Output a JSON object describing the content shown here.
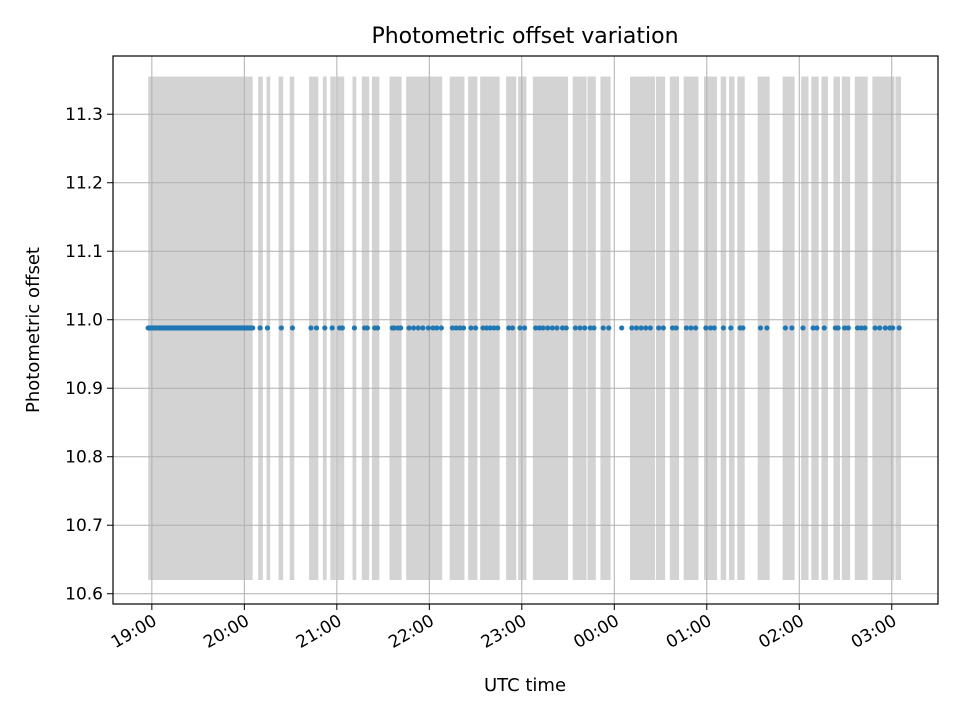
{
  "chart_data": {
    "type": "scatter",
    "title": "Photometric offset variation",
    "xlabel": "UTC time",
    "ylabel": "Photometric offset",
    "x_unit": "hours (UTC, continuing past midnight)",
    "xlim": [
      18.58,
      27.5
    ],
    "ylim": [
      10.585,
      11.385
    ],
    "grid": true,
    "x_ticks": [
      {
        "value": 19,
        "label": "19:00"
      },
      {
        "value": 20,
        "label": "20:00"
      },
      {
        "value": 21,
        "label": "21:00"
      },
      {
        "value": 22,
        "label": "22:00"
      },
      {
        "value": 23,
        "label": "23:00"
      },
      {
        "value": 24,
        "label": "00:00"
      },
      {
        "value": 25,
        "label": "01:00"
      },
      {
        "value": 26,
        "label": "02:00"
      },
      {
        "value": 27,
        "label": "03:00"
      }
    ],
    "y_ticks": [
      {
        "value": 10.6,
        "label": "10.6"
      },
      {
        "value": 10.7,
        "label": "10.7"
      },
      {
        "value": 10.8,
        "label": "10.8"
      },
      {
        "value": 10.9,
        "label": "10.9"
      },
      {
        "value": 11.0,
        "label": "11.0"
      },
      {
        "value": 11.1,
        "label": "11.1"
      },
      {
        "value": 11.2,
        "label": "11.2"
      },
      {
        "value": 11.3,
        "label": "11.3"
      }
    ],
    "bands": {
      "color": "#d3d3d3",
      "y_range": [
        10.62,
        11.355
      ],
      "intervals": [
        [
          18.96,
          20.09
        ],
        [
          20.15,
          20.2
        ],
        [
          20.24,
          20.28
        ],
        [
          20.37,
          20.42
        ],
        [
          20.49,
          20.54
        ],
        [
          20.7,
          20.8
        ],
        [
          20.85,
          20.89
        ],
        [
          20.93,
          20.99
        ],
        [
          21.0,
          21.08
        ],
        [
          21.17,
          21.21
        ],
        [
          21.27,
          21.35
        ],
        [
          21.38,
          21.46
        ],
        [
          21.57,
          21.7
        ],
        [
          21.75,
          22.14
        ],
        [
          22.22,
          22.38
        ],
        [
          22.42,
          22.52
        ],
        [
          22.55,
          22.76
        ],
        [
          22.83,
          22.94
        ],
        [
          22.96,
          23.05
        ],
        [
          23.12,
          23.5
        ],
        [
          23.55,
          23.7
        ],
        [
          23.71,
          23.8
        ],
        [
          23.85,
          23.96
        ],
        [
          24.17,
          24.44
        ],
        [
          24.45,
          24.55
        ],
        [
          24.6,
          24.7
        ],
        [
          24.75,
          24.91
        ],
        [
          24.97,
          25.11
        ],
        [
          25.15,
          25.21
        ],
        [
          25.24,
          25.3
        ],
        [
          25.33,
          25.41
        ],
        [
          25.55,
          25.68
        ],
        [
          25.82,
          25.95
        ],
        [
          26.02,
          26.1
        ],
        [
          26.13,
          26.21
        ],
        [
          26.24,
          26.31
        ],
        [
          26.37,
          26.44
        ],
        [
          26.46,
          26.55
        ],
        [
          26.6,
          26.74
        ],
        [
          26.79,
          27.03
        ],
        [
          27.04,
          27.1
        ]
      ]
    },
    "series": [
      {
        "color": "#1f77b4",
        "y_value": 10.988,
        "x_dense_range": [
          18.96,
          20.09
        ],
        "x": [
          20.17,
          20.25,
          20.4,
          20.52,
          20.72,
          20.78,
          20.87,
          20.95,
          21.03,
          21.06,
          21.19,
          21.3,
          21.33,
          21.41,
          21.44,
          21.6,
          21.62,
          21.66,
          21.69,
          21.78,
          21.83,
          21.88,
          21.93,
          21.99,
          22.04,
          22.08,
          22.13,
          22.25,
          22.29,
          22.33,
          22.37,
          22.45,
          22.5,
          22.58,
          22.62,
          22.66,
          22.7,
          22.74,
          22.86,
          22.9,
          22.98,
          23.03,
          23.15,
          23.19,
          23.23,
          23.28,
          23.33,
          23.38,
          23.44,
          23.48,
          23.58,
          23.63,
          23.68,
          23.74,
          23.78,
          23.88,
          23.94,
          24.08,
          24.19,
          24.24,
          24.29,
          24.34,
          24.39,
          24.48,
          24.53,
          24.63,
          24.67,
          24.78,
          24.83,
          24.88,
          24.99,
          25.04,
          25.08,
          25.18,
          25.26,
          25.36,
          25.39,
          25.58,
          25.65,
          25.85,
          25.92,
          26.04,
          26.15,
          26.19,
          26.27,
          26.39,
          26.42,
          26.49,
          26.53,
          26.63,
          26.67,
          26.71,
          26.82,
          26.87,
          26.93,
          26.98,
          27.01,
          27.08
        ]
      }
    ]
  }
}
